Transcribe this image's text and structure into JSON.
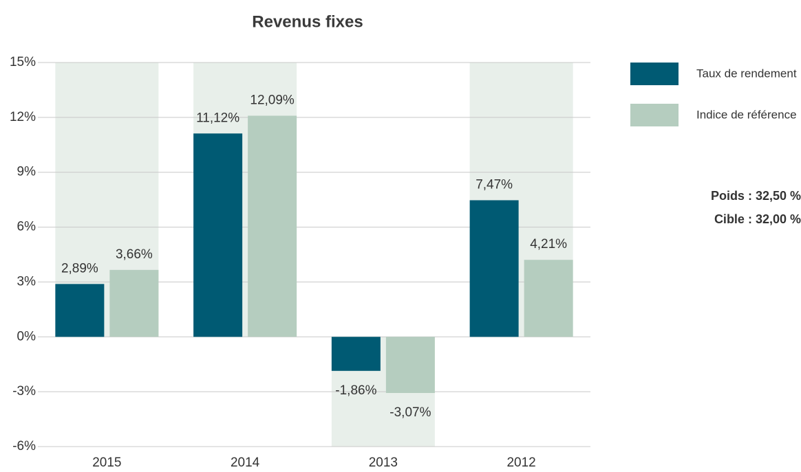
{
  "chart_data": {
    "type": "bar",
    "title": "Revenus fixes",
    "categories": [
      "2015",
      "2014",
      "2013",
      "2012"
    ],
    "series": [
      {
        "name": "Taux de rendement",
        "color": "#005a73",
        "values": [
          2.89,
          11.12,
          -1.86,
          7.47
        ],
        "value_labels": [
          "2,89%",
          "11,12%",
          "-1,86%",
          "7,47%"
        ]
      },
      {
        "name": "Indice de référence",
        "color": "#b5cdbf",
        "values": [
          3.66,
          12.09,
          -3.07,
          4.21
        ],
        "value_labels": [
          "3,66%",
          "12,09%",
          "-3,07%",
          "4,21%"
        ]
      }
    ],
    "ylim": [
      -6,
      15
    ],
    "yticks": [
      {
        "value": -6,
        "label": "-6%"
      },
      {
        "value": -3,
        "label": "-3%"
      },
      {
        "value": 0,
        "label": "0%"
      },
      {
        "value": 3,
        "label": "3%"
      },
      {
        "value": 6,
        "label": "6%"
      },
      {
        "value": 9,
        "label": "9%"
      },
      {
        "value": 12,
        "label": "12%"
      },
      {
        "value": 15,
        "label": "15%"
      }
    ],
    "grid": true,
    "legend": "right",
    "annotations": [
      "Poids : 32,50 %",
      "Cible : 32,00 %"
    ]
  }
}
